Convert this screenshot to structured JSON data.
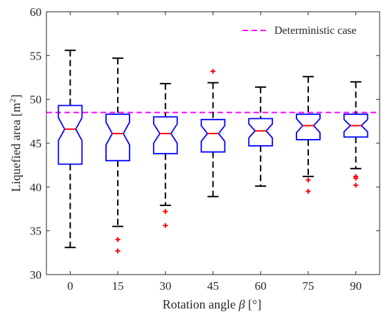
{
  "chart_data": {
    "type": "box",
    "title": "",
    "xlabel_main": "Rotation angle ",
    "xlabel_symbol": "β",
    "xlabel_unit": " [°]",
    "ylabel_main": "Liquefied area [m",
    "ylabel_sup": "2",
    "ylabel_end": "]",
    "ylim": [
      30,
      60
    ],
    "yticks": [
      "30",
      "35",
      "40",
      "45",
      "50",
      "55",
      "60"
    ],
    "categories": [
      "0",
      "15",
      "30",
      "45",
      "60",
      "75",
      "90"
    ],
    "boxes": [
      {
        "category": "0",
        "min": 33.1,
        "q1": 42.6,
        "median": 46.6,
        "q3": 49.3,
        "max": 55.6,
        "notch_lo": 45.3,
        "notch_hi": 47.9,
        "outliers": []
      },
      {
        "category": "15",
        "min": 35.5,
        "q1": 43.0,
        "median": 46.1,
        "q3": 48.3,
        "max": 54.7,
        "notch_lo": 44.8,
        "notch_hi": 47.4,
        "outliers": [
          34.0,
          32.7
        ]
      },
      {
        "category": "30",
        "min": 37.9,
        "q1": 43.8,
        "median": 46.1,
        "q3": 48.0,
        "max": 51.8,
        "notch_lo": 45.0,
        "notch_hi": 47.2,
        "outliers": [
          37.2,
          35.6
        ]
      },
      {
        "category": "45",
        "min": 38.9,
        "q1": 44.0,
        "median": 46.1,
        "q3": 47.7,
        "max": 51.9,
        "notch_lo": 45.2,
        "notch_hi": 47.0,
        "outliers": [
          53.2
        ]
      },
      {
        "category": "60",
        "min": 40.1,
        "q1": 44.7,
        "median": 46.4,
        "q3": 47.8,
        "max": 51.4,
        "notch_lo": 45.6,
        "notch_hi": 47.2,
        "outliers": []
      },
      {
        "category": "75",
        "min": 41.2,
        "q1": 45.4,
        "median": 47.0,
        "q3": 48.3,
        "max": 52.6,
        "notch_lo": 46.2,
        "notch_hi": 47.8,
        "outliers": [
          40.8,
          39.5
        ]
      },
      {
        "category": "90",
        "min": 42.1,
        "q1": 45.7,
        "median": 47.0,
        "q3": 48.3,
        "max": 52.0,
        "notch_lo": 46.3,
        "notch_hi": 47.7,
        "outliers": [
          41.2,
          41.0,
          40.2
        ]
      }
    ],
    "reference_line": {
      "name": "Deterministic case",
      "value": 48.5,
      "color": "#ff00ff",
      "style": "dashed"
    },
    "legend_position": "top-right",
    "colors": {
      "box": "#0000ff",
      "median": "#ff0000",
      "whisker": "#000000",
      "outlier": "#ff0000",
      "axis": "#262626"
    },
    "grid": false
  }
}
